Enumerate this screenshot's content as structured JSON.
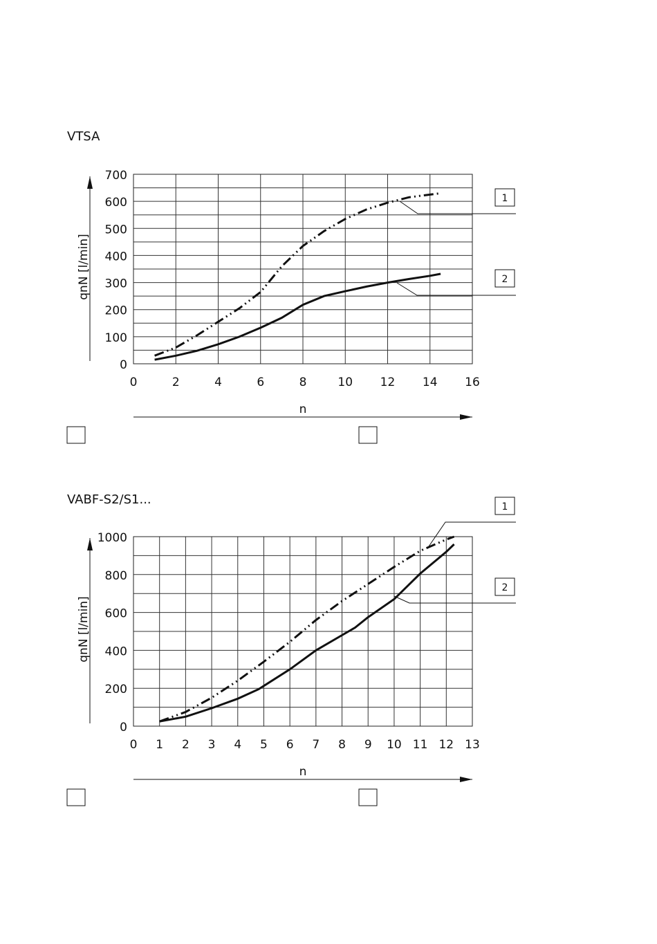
{
  "chart_data": [
    {
      "type": "line",
      "title": "VTSA",
      "xlabel": "n",
      "ylabel": "qnN [l/min]",
      "xlim": [
        0,
        16
      ],
      "ylim": [
        0,
        700
      ],
      "x_ticks": [
        "0",
        "2",
        "4",
        "6",
        "8",
        "10",
        "12",
        "14",
        "16"
      ],
      "y_ticks": [
        "0",
        "100",
        "200",
        "300",
        "400",
        "500",
        "600",
        "700"
      ],
      "grid": true,
      "series": [
        {
          "name": "1",
          "style": "dash-dot-dot",
          "x": [
            1,
            2,
            3,
            4,
            5,
            6,
            7,
            8,
            9,
            10,
            11,
            12,
            13,
            14,
            14.5
          ],
          "y": [
            30,
            60,
            105,
            155,
            205,
            265,
            360,
            435,
            490,
            535,
            570,
            595,
            615,
            625,
            630
          ]
        },
        {
          "name": "2",
          "style": "solid",
          "x": [
            1,
            2,
            3,
            4,
            5,
            6,
            7,
            8,
            9,
            10,
            11,
            12,
            13,
            14,
            14.5
          ],
          "y": [
            15,
            30,
            48,
            72,
            100,
            133,
            170,
            218,
            250,
            268,
            285,
            300,
            313,
            325,
            332
          ]
        }
      ],
      "callouts": [
        "1",
        "2"
      ],
      "legend_boxes": [
        "",
        ""
      ]
    },
    {
      "type": "line",
      "title": "VABF-S2/S1...",
      "xlabel": "n",
      "ylabel": "qnN [l/min]",
      "xlim": [
        0,
        13
      ],
      "ylim": [
        0,
        1000
      ],
      "x_ticks": [
        "0",
        "1",
        "2",
        "3",
        "4",
        "5",
        "6",
        "7",
        "8",
        "9",
        "10",
        "11",
        "12",
        "13"
      ],
      "y_ticks": [
        "0",
        "200",
        "400",
        "600",
        "800",
        "1000"
      ],
      "grid": true,
      "series": [
        {
          "name": "1",
          "style": "dash-dot-dot",
          "x": [
            1,
            2,
            3,
            4,
            5,
            6,
            7,
            8,
            9,
            10,
            11,
            12,
            12.3
          ],
          "y": [
            25,
            75,
            150,
            240,
            340,
            445,
            560,
            660,
            750,
            840,
            925,
            985,
            1000
          ]
        },
        {
          "name": "2",
          "style": "solid",
          "x": [
            1,
            2,
            3,
            4,
            4.8,
            6,
            7,
            8,
            8.5,
            9,
            10,
            11,
            12,
            12.3
          ],
          "y": [
            25,
            50,
            95,
            145,
            195,
            300,
            400,
            480,
            520,
            575,
            670,
            805,
            920,
            960
          ]
        }
      ],
      "callouts": [
        "1",
        "2"
      ],
      "legend_boxes": [
        "",
        ""
      ]
    }
  ]
}
